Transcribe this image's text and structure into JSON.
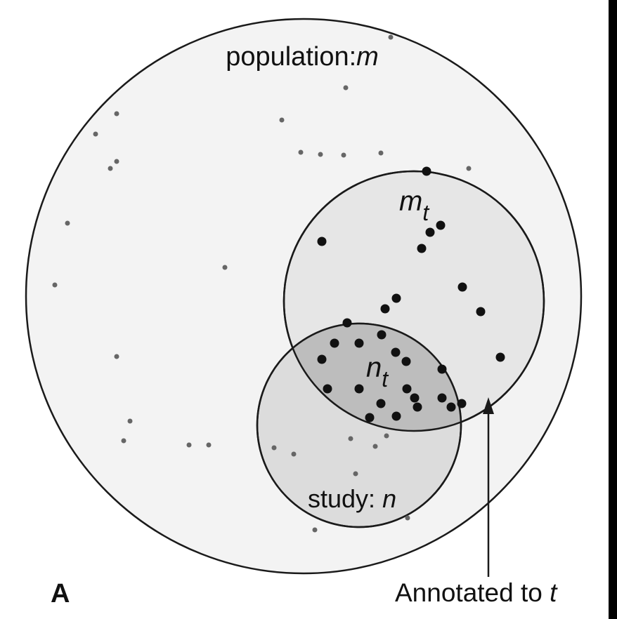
{
  "panel_letter": "A",
  "labels": {
    "population_prefix": "population:",
    "population_var": "m",
    "annotated_var": "m",
    "annotated_sub": "t",
    "overlap_var": "n",
    "overlap_sub": "t",
    "study_prefix": "study: ",
    "study_var": "n",
    "arrow_prefix": "Annotated to ",
    "arrow_var": "t"
  },
  "colors": {
    "population_fill": "#f3f3f3",
    "annotated_fill": "#e6e6e6",
    "study_fill": "#dcdcdc",
    "overlap_fill": "#bdbdbd",
    "stroke": "#1a1a1a",
    "annotated_dot": "#111111",
    "background_dot": "#666666",
    "right_bar": "#000000"
  }
}
